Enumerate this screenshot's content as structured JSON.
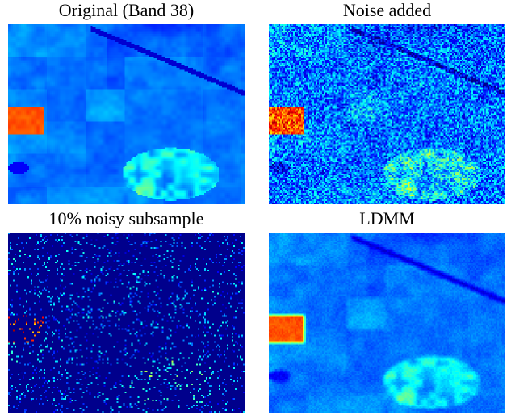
{
  "figure": {
    "panels": [
      {
        "key": "original",
        "caption": "Original (Band 38)"
      },
      {
        "key": "noisy",
        "caption": "Noise added"
      },
      {
        "key": "subsample",
        "caption": "10% noisy subsample"
      },
      {
        "key": "ldmm",
        "caption": "LDMM"
      }
    ],
    "colormap": "jet",
    "subsample_fraction": 0.1
  }
}
